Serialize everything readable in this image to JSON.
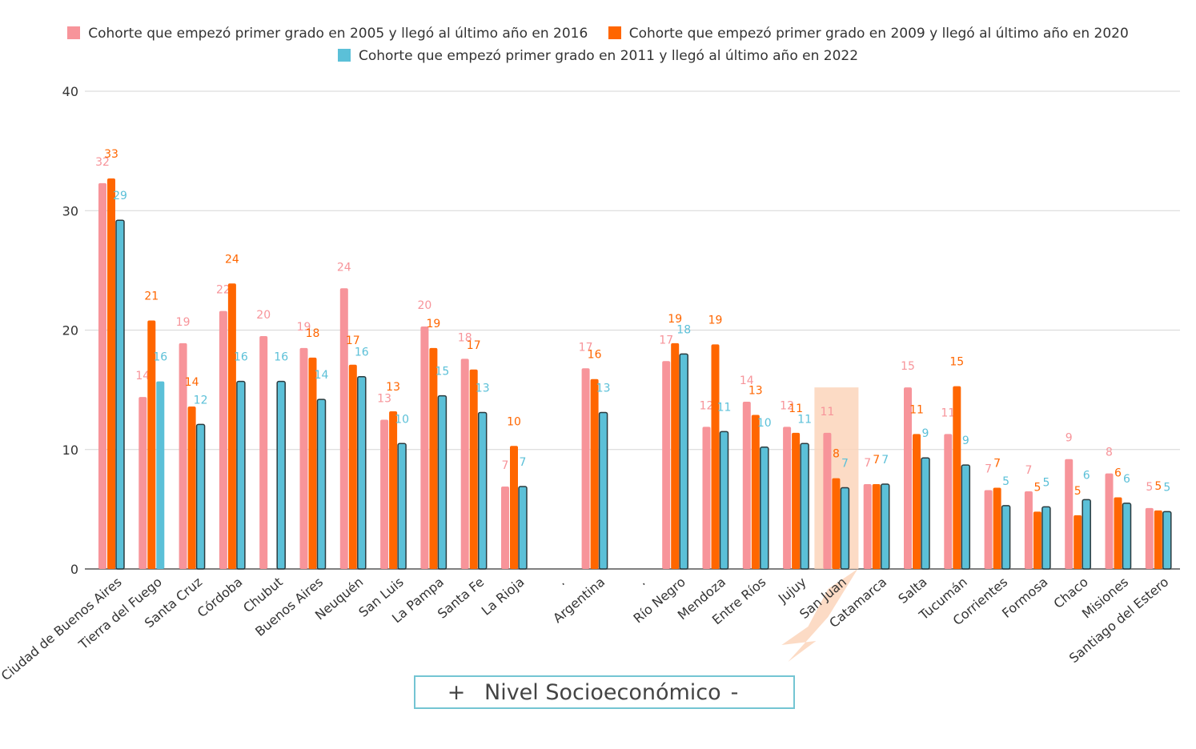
{
  "legend": {
    "items": [
      {
        "label": "Cohorte que empezó primer grado en 2005 y llegó al último año en 2016",
        "color": "#f7949a"
      },
      {
        "label": "Cohorte que empezó primer grado en 2009 y llegó al último año en 2020",
        "color": "#ff6600"
      },
      {
        "label": "Cohorte que empezó primer grado en 2011 y llegó al último año en 2022",
        "color": "#5bc0d8"
      }
    ]
  },
  "footer": {
    "plus": "+",
    "label": "Nivel Socioeconómico",
    "minus": "-"
  },
  "chart_data": {
    "type": "bar",
    "title": "",
    "xlabel": "",
    "ylabel": "",
    "ylim": [
      0,
      40
    ],
    "yticks": [
      0,
      10,
      20,
      30,
      40
    ],
    "grid": true,
    "legend_position": "top",
    "highlight": "San Juan",
    "categories": [
      "Ciudad de Buenos Aires",
      "Tierra del Fuego",
      "Santa Cruz",
      "Córdoba",
      "Chubut",
      "Buenos Aires",
      "Neuquén",
      "San Luis",
      "La Pampa",
      "Santa Fe",
      "La Rioja",
      ".",
      "Argentina",
      ".",
      "Río Negro",
      "Mendoza",
      "Entre Ríos",
      "Jujuy",
      "San Juan",
      "Catamarca",
      "Salta",
      "Tucumán",
      "Corrientes",
      "Formosa",
      "Chaco",
      "Misiones",
      "Santiago del Estero"
    ],
    "series": [
      {
        "name": "Cohorte que empezó primer grado en 2005 y llegó al último año en 2016",
        "values": [
          32.3,
          14.4,
          18.9,
          21.6,
          19.5,
          18.5,
          23.5,
          12.5,
          20.3,
          17.6,
          6.9,
          null,
          16.8,
          null,
          17.4,
          11.9,
          14.0,
          11.9,
          11.4,
          7.1,
          15.2,
          11.3,
          6.6,
          6.5,
          9.2,
          8.0,
          5.1
        ],
        "labels": [
          "32",
          "14",
          "19",
          "22",
          "20",
          "19",
          "24",
          "13",
          "20",
          "18",
          "7",
          "",
          "17",
          "",
          "17",
          "12",
          "14",
          "12",
          "11",
          "7",
          "15",
          "11",
          "7",
          "7",
          "9",
          "8",
          "5"
        ]
      },
      {
        "name": "Cohorte que empezó primer grado en 2009 y llegó al último año en 2020",
        "values": [
          32.7,
          20.8,
          13.6,
          23.9,
          null,
          17.7,
          17.1,
          13.2,
          18.5,
          16.7,
          10.3,
          null,
          15.9,
          null,
          18.9,
          18.8,
          12.9,
          11.4,
          7.6,
          7.1,
          11.3,
          15.3,
          6.8,
          4.8,
          4.5,
          6.0,
          4.9
        ],
        "labels": [
          "33",
          "21",
          "14",
          "24",
          "",
          "18",
          "17",
          "13",
          "19",
          "17",
          "10",
          "",
          "16",
          "",
          "19",
          "19",
          "13",
          "11",
          "8",
          "7",
          "11",
          "15",
          "7",
          "5",
          "5",
          "6",
          "5"
        ]
      },
      {
        "name": "Cohorte que empezó primer grado en 2011 y llegó al último año en 2022",
        "values": [
          29.2,
          15.7,
          12.1,
          15.7,
          15.7,
          14.2,
          16.1,
          10.5,
          14.5,
          13.1,
          6.9,
          null,
          13.1,
          null,
          18.0,
          11.5,
          10.2,
          10.5,
          6.8,
          7.1,
          9.3,
          8.7,
          5.3,
          5.2,
          5.8,
          5.5,
          4.8
        ],
        "labels": [
          "29",
          "16",
          "12",
          "16",
          "16",
          "14",
          "16",
          "10",
          "15",
          "13",
          "7",
          "",
          "13",
          "",
          "18",
          "11",
          "10",
          "11",
          "7",
          "7",
          "9",
          "9",
          "5",
          "5",
          "6",
          "6",
          "5"
        ]
      }
    ]
  }
}
